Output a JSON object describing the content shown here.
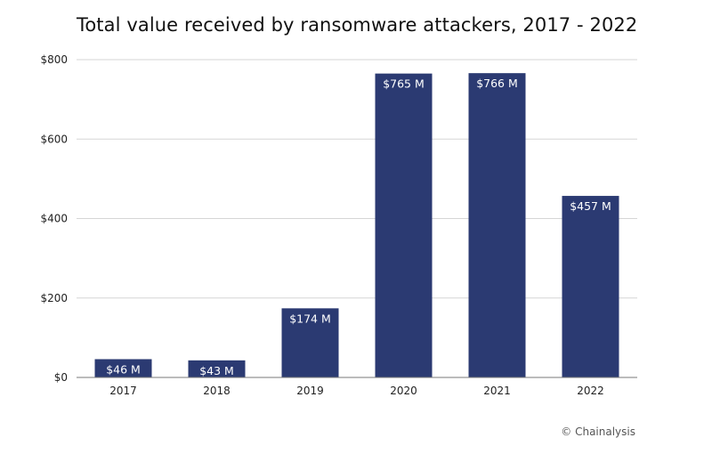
{
  "chart_data": {
    "type": "bar",
    "title": "Total value received by ransomware attackers, 2017 - 2022",
    "categories": [
      "2017",
      "2018",
      "2019",
      "2020",
      "2021",
      "2022"
    ],
    "values": [
      46,
      43,
      174,
      765,
      766,
      457
    ],
    "data_labels": [
      "$46 M",
      "$43 M",
      "$174 M",
      "$765 M",
      "$766 M",
      "$457 M"
    ],
    "ylim": [
      0,
      800
    ],
    "yticks": [
      0,
      200,
      400,
      600,
      800
    ],
    "ytick_labels": [
      "$0",
      "$200",
      "$400",
      "$600",
      "$800"
    ],
    "xlabel": "",
    "ylabel": "",
    "grid": true,
    "bar_color": "#2b3a72"
  },
  "source": "© Chainalysis"
}
